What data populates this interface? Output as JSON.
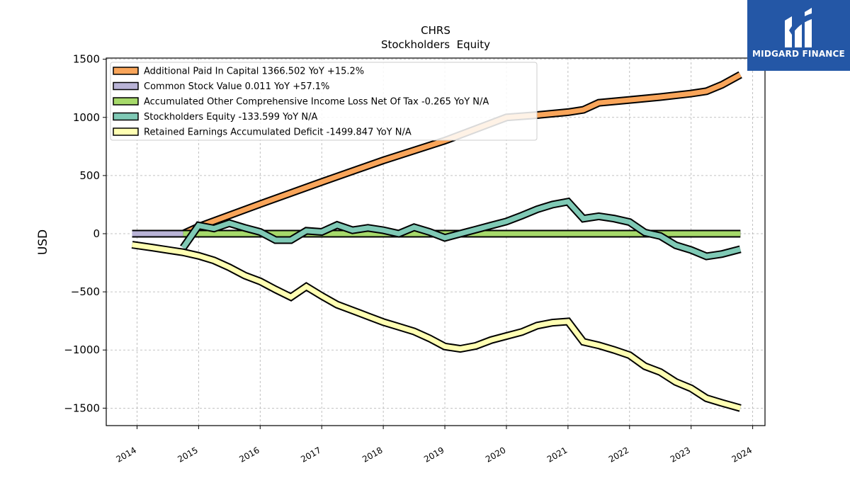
{
  "chart_data": {
    "type": "line",
    "title": "CHRS",
    "subtitle": "Stockholders  Equity",
    "ylabel": "USD",
    "xlabel": "",
    "xlim": [
      2013.5,
      2024.2
    ],
    "ylim": [
      -1650,
      1510
    ],
    "yticks": [
      1500,
      1000,
      500,
      0,
      -500,
      -1000,
      -1500
    ],
    "ytick_labels": [
      "1500",
      "1000",
      "500",
      "0",
      "−500",
      "−1000",
      "−1500"
    ],
    "xticks": [
      2014,
      2015,
      2016,
      2017,
      2018,
      2019,
      2020,
      2021,
      2022,
      2023,
      2024
    ],
    "xtick_labels": [
      "2014",
      "2015",
      "2016",
      "2017",
      "2018",
      "2019",
      "2020",
      "2021",
      "2022",
      "2023",
      "2024"
    ],
    "grid": true,
    "legend_position": "top-left",
    "series": [
      {
        "name": "Additional Paid In Capital  1366.502 YoY +15.2%",
        "color": "#f9a55a",
        "points": [
          [
            2014.75,
            0
          ],
          [
            2015.0,
            60
          ],
          [
            2016.0,
            255
          ],
          [
            2017.0,
            445
          ],
          [
            2018.0,
            630
          ],
          [
            2019.0,
            800
          ],
          [
            2020.0,
            1000
          ],
          [
            2020.5,
            1020
          ],
          [
            2021.0,
            1045
          ],
          [
            2021.25,
            1065
          ],
          [
            2021.5,
            1125
          ],
          [
            2022.0,
            1150
          ],
          [
            2022.5,
            1175
          ],
          [
            2023.0,
            1205
          ],
          [
            2023.25,
            1225
          ],
          [
            2023.5,
            1280
          ],
          [
            2023.8,
            1366.502
          ]
        ]
      },
      {
        "name": "Common Stock Value  0.011 YoY +57.1%",
        "color": "#b9b3d6",
        "points": [
          [
            2013.92,
            0
          ],
          [
            2023.8,
            0
          ]
        ]
      },
      {
        "name": "Accumulated Other Comprehensive Income Loss Net Of Tax  -0.265 YoY N/A",
        "color": "#a6d96a",
        "points": [
          [
            2014.75,
            0
          ],
          [
            2023.8,
            0
          ]
        ]
      },
      {
        "name": "Stockholders Equity  -133.599 YoY N/A",
        "color": "#7fc9b5",
        "points": [
          [
            2014.75,
            -120
          ],
          [
            2015.0,
            70
          ],
          [
            2015.25,
            45
          ],
          [
            2015.5,
            90
          ],
          [
            2015.75,
            50
          ],
          [
            2016.0,
            15
          ],
          [
            2016.25,
            -55
          ],
          [
            2016.5,
            -55
          ],
          [
            2016.75,
            25
          ],
          [
            2017.0,
            15
          ],
          [
            2017.25,
            75
          ],
          [
            2017.5,
            30
          ],
          [
            2017.75,
            50
          ],
          [
            2018.0,
            30
          ],
          [
            2018.25,
            0
          ],
          [
            2018.5,
            55
          ],
          [
            2018.75,
            15
          ],
          [
            2019.0,
            -35
          ],
          [
            2019.25,
            0
          ],
          [
            2019.5,
            35
          ],
          [
            2019.75,
            70
          ],
          [
            2020.0,
            105
          ],
          [
            2020.25,
            155
          ],
          [
            2020.5,
            210
          ],
          [
            2020.75,
            250
          ],
          [
            2021.0,
            275
          ],
          [
            2021.25,
            130
          ],
          [
            2021.5,
            150
          ],
          [
            2021.75,
            130
          ],
          [
            2022.0,
            100
          ],
          [
            2022.25,
            10
          ],
          [
            2022.5,
            -20
          ],
          [
            2022.75,
            -100
          ],
          [
            2023.0,
            -140
          ],
          [
            2023.25,
            -195
          ],
          [
            2023.5,
            -175
          ],
          [
            2023.8,
            -133.599
          ]
        ]
      },
      {
        "name": "Retained Earnings Accumulated Deficit  -1499.847 YoY N/A",
        "color": "#ffffb3",
        "points": [
          [
            2013.92,
            -95
          ],
          [
            2014.25,
            -120
          ],
          [
            2014.5,
            -140
          ],
          [
            2014.75,
            -160
          ],
          [
            2015.0,
            -190
          ],
          [
            2015.25,
            -230
          ],
          [
            2015.5,
            -290
          ],
          [
            2015.75,
            -360
          ],
          [
            2016.0,
            -410
          ],
          [
            2016.25,
            -480
          ],
          [
            2016.5,
            -545
          ],
          [
            2016.75,
            -455
          ],
          [
            2017.0,
            -535
          ],
          [
            2017.25,
            -610
          ],
          [
            2017.5,
            -660
          ],
          [
            2017.75,
            -710
          ],
          [
            2018.0,
            -760
          ],
          [
            2018.25,
            -800
          ],
          [
            2018.5,
            -840
          ],
          [
            2018.75,
            -900
          ],
          [
            2019.0,
            -970
          ],
          [
            2019.25,
            -990
          ],
          [
            2019.5,
            -965
          ],
          [
            2019.75,
            -915
          ],
          [
            2020.0,
            -880
          ],
          [
            2020.25,
            -845
          ],
          [
            2020.5,
            -790
          ],
          [
            2020.75,
            -765
          ],
          [
            2021.0,
            -755
          ],
          [
            2021.25,
            -930
          ],
          [
            2021.5,
            -960
          ],
          [
            2021.75,
            -1000
          ],
          [
            2022.0,
            -1045
          ],
          [
            2022.25,
            -1140
          ],
          [
            2022.5,
            -1190
          ],
          [
            2022.75,
            -1275
          ],
          [
            2023.0,
            -1330
          ],
          [
            2023.25,
            -1415
          ],
          [
            2023.5,
            -1455
          ],
          [
            2023.8,
            -1499.847
          ]
        ]
      }
    ]
  },
  "logo": {
    "text": "MIDGARD FINANCE",
    "background": "#2457a6"
  }
}
